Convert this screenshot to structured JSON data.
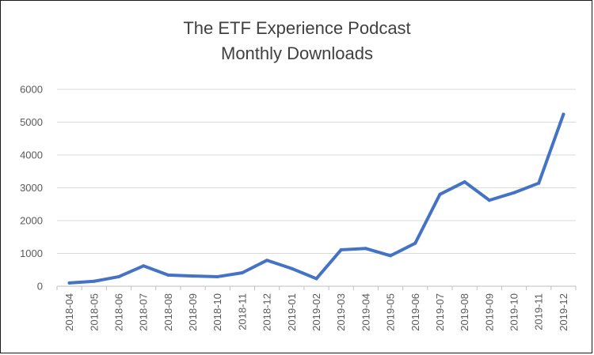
{
  "chart_data": {
    "type": "line",
    "title": "The ETF Experience Podcast",
    "subtitle": "Monthly Downloads",
    "xlabel": "",
    "ylabel": "",
    "ylim": [
      0,
      6000
    ],
    "yticks": [
      0,
      1000,
      2000,
      3000,
      4000,
      5000,
      6000
    ],
    "grid": true,
    "legend": "none",
    "categories": [
      "2018-04",
      "2018-05",
      "2018-06",
      "2018-07",
      "2018-08",
      "2018-09",
      "2018-10",
      "2018-11",
      "2018-12",
      "2019-01",
      "2019-02",
      "2019-03",
      "2019-04",
      "2019-05",
      "2019-06",
      "2019-07",
      "2019-08",
      "2019-09",
      "2019-10",
      "2019-11",
      "2019-12"
    ],
    "series": [
      {
        "values": [
          100,
          150,
          290,
          620,
          340,
          310,
          290,
          410,
          790,
          540,
          230,
          1110,
          1150,
          930,
          1310,
          2800,
          3180,
          2620,
          2850,
          3140,
          5240
        ],
        "color": "#4472c4"
      }
    ]
  }
}
